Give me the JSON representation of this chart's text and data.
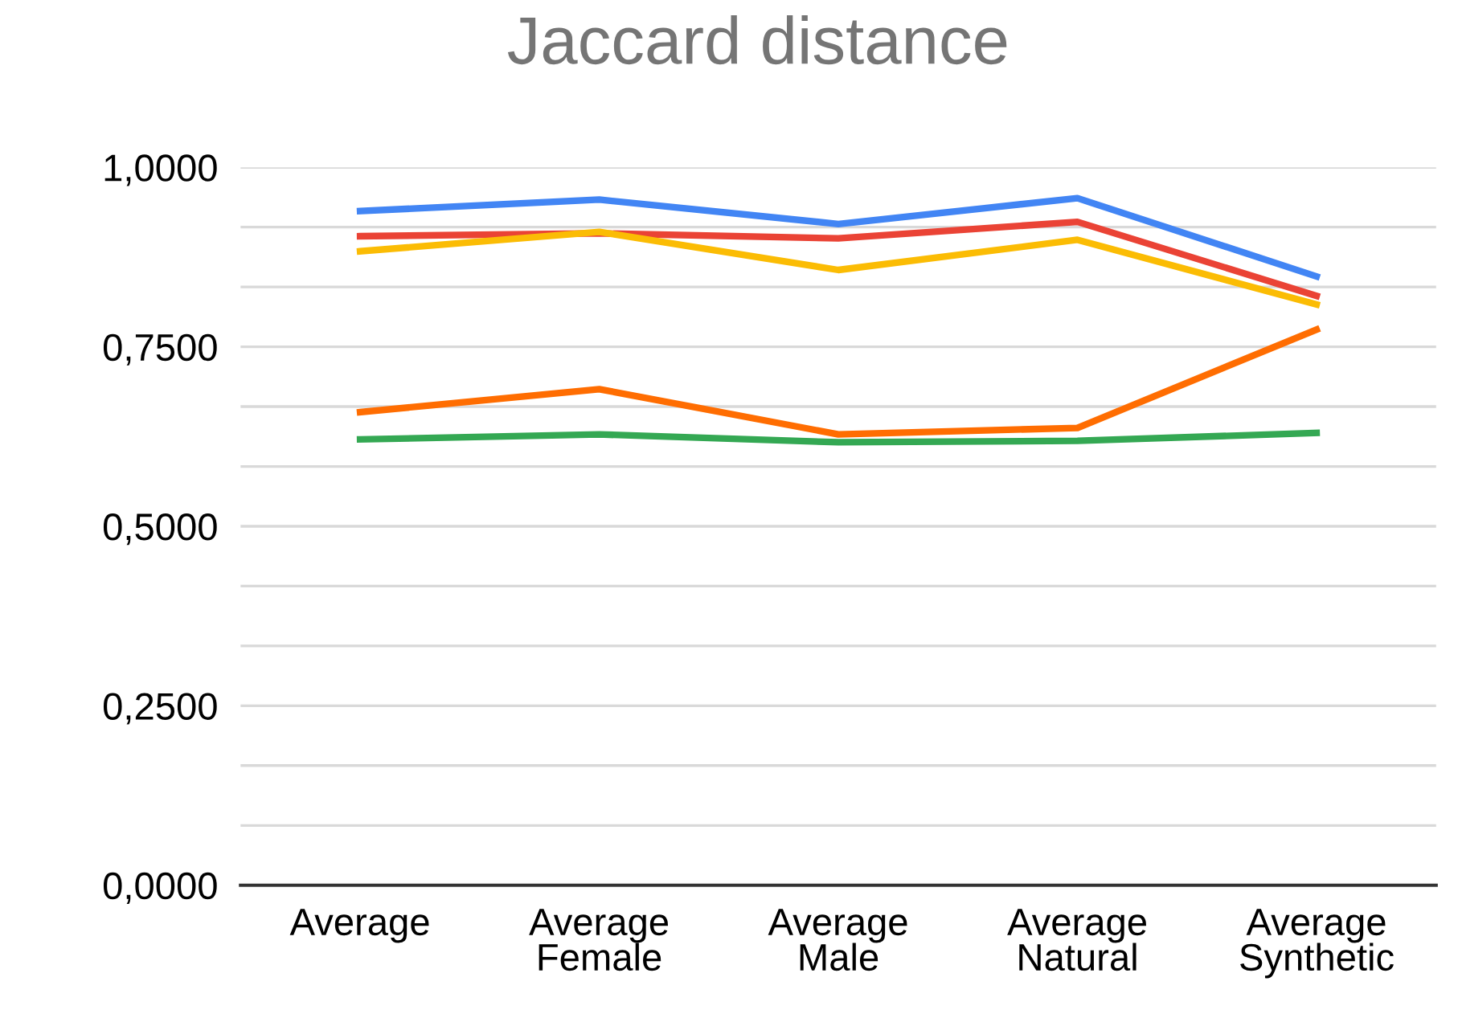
{
  "chart_data": {
    "type": "line",
    "title": "Jaccard distance",
    "categories": [
      "Average",
      "Average\nFemale",
      "Average\nMale",
      "Average\nNatural",
      "Average\nSynthetic"
    ],
    "series": [
      {
        "color": "#4285f4",
        "values": [
          0.939,
          0.955,
          0.921,
          0.957,
          0.848
        ]
      },
      {
        "color": "#ea4335",
        "values": [
          0.904,
          0.908,
          0.901,
          0.924,
          0.821
        ]
      },
      {
        "color": "#fbbc04",
        "values": [
          0.883,
          0.91,
          0.857,
          0.899,
          0.809
        ]
      },
      {
        "color": "#34a853",
        "values": [
          0.621,
          0.628,
          0.617,
          0.619,
          0.63
        ]
      },
      {
        "color": "#ff6d01",
        "values": [
          0.659,
          0.691,
          0.628,
          0.637,
          0.774
        ]
      }
    ],
    "ylim": [
      0,
      1
    ],
    "yticks": [
      {
        "value": 0,
        "label": "0,0000"
      },
      {
        "value": 0.0833,
        "label": null
      },
      {
        "value": 0.1667,
        "label": null
      },
      {
        "value": 0.25,
        "label": "0,2500"
      },
      {
        "value": 0.3333,
        "label": null
      },
      {
        "value": 0.4167,
        "label": null
      },
      {
        "value": 0.5,
        "label": "0,5000"
      },
      {
        "value": 0.5833,
        "label": null
      },
      {
        "value": 0.6667,
        "label": null
      },
      {
        "value": 0.75,
        "label": "0,7500"
      },
      {
        "value": 0.8333,
        "label": null
      },
      {
        "value": 0.9167,
        "label": null
      },
      {
        "value": 1,
        "label": "1,0000"
      }
    ],
    "grid": "y",
    "marker": "none",
    "line_style": "solid",
    "legend": false
  }
}
